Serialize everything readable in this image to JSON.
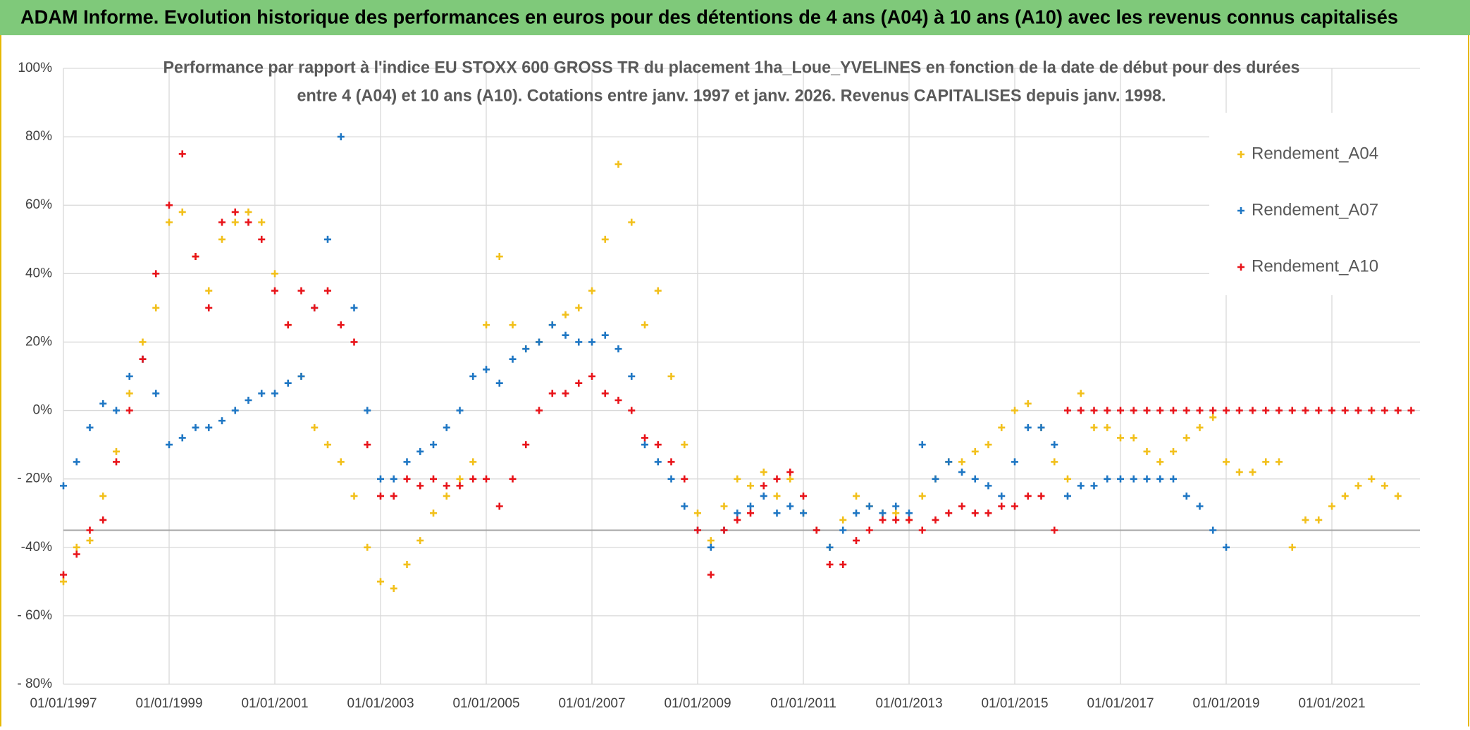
{
  "header": "ADAM Informe. Evolution historique des performances en euros pour des détentions de 4 ans (A04) à 10 ans (A10) avec les revenus connus capitalisés",
  "chart_data": {
    "type": "scatter",
    "title": [
      "Performance par rapport à l'indice EU STOXX 600 GROSS TR  du placement 1ha_Loue_YVELINES en fonction de la date de début pour des durées",
      "entre 4 (A04) et 10 ans (A10). Cotations entre janv. 1997 et janv. 2026. Revenus CAPITALISES depuis janv. 1998."
    ],
    "x": [
      "01/01/1997",
      "01/04/1997",
      "01/07/1997",
      "01/10/1997",
      "01/01/1998",
      "01/04/1998",
      "01/07/1998",
      "01/10/1998",
      "01/01/1999",
      "01/04/1999",
      "01/07/1999",
      "01/10/1999",
      "01/01/2000",
      "01/04/2000",
      "01/07/2000",
      "01/10/2000",
      "01/01/2001",
      "01/04/2001",
      "01/07/2001",
      "01/10/2001",
      "01/01/2002",
      "01/04/2002",
      "01/07/2002",
      "01/10/2002",
      "01/01/2003",
      "01/04/2003",
      "01/07/2003",
      "01/10/2003",
      "01/01/2004",
      "01/04/2004",
      "01/07/2004",
      "01/10/2004",
      "01/01/2005",
      "01/04/2005",
      "01/07/2005",
      "01/10/2005",
      "01/01/2006",
      "01/04/2006",
      "01/07/2006",
      "01/10/2006",
      "01/01/2007",
      "01/04/2007",
      "01/07/2007",
      "01/10/2007",
      "01/01/2008",
      "01/04/2008",
      "01/07/2008",
      "01/10/2008",
      "01/01/2009",
      "01/04/2009",
      "01/07/2009",
      "01/10/2009",
      "01/01/2010",
      "01/04/2010",
      "01/07/2010",
      "01/10/2010",
      "01/01/2011",
      "01/04/2011",
      "01/07/2011",
      "01/10/2011",
      "01/01/2012",
      "01/04/2012",
      "01/07/2012",
      "01/10/2012",
      "01/01/2013",
      "01/04/2013",
      "01/07/2013",
      "01/10/2013",
      "01/01/2014",
      "01/04/2014",
      "01/07/2014",
      "01/10/2014",
      "01/01/2015",
      "01/04/2015",
      "01/07/2015",
      "01/10/2015",
      "01/01/2016",
      "01/04/2016",
      "01/07/2016",
      "01/10/2016",
      "01/01/2017",
      "01/04/2017",
      "01/07/2017",
      "01/10/2017",
      "01/01/2018",
      "01/04/2018",
      "01/07/2018",
      "01/10/2018",
      "01/01/2019",
      "01/04/2019",
      "01/07/2019",
      "01/10/2019",
      "01/01/2020",
      "01/04/2020",
      "01/07/2020",
      "01/10/2020",
      "01/01/2021",
      "01/04/2021",
      "01/07/2021",
      "01/10/2021",
      "01/01/2022",
      "01/04/2022",
      "01/07/2022"
    ],
    "series": [
      {
        "name": "Rendement_A04",
        "color": "#f2c01b",
        "values": [
          -50,
          -40,
          -38,
          -25,
          -12,
          5,
          20,
          30,
          55,
          58,
          45,
          35,
          50,
          55,
          58,
          55,
          40,
          25,
          10,
          -5,
          -10,
          -15,
          -25,
          -40,
          -50,
          -52,
          -45,
          -38,
          -30,
          -25,
          -20,
          -15,
          25,
          45,
          25,
          18,
          20,
          25,
          28,
          30,
          35,
          50,
          72,
          55,
          25,
          35,
          10,
          -10,
          -30,
          -38,
          -28,
          -20,
          -22,
          -18,
          -25,
          -20,
          -30,
          -35,
          -40,
          -32,
          -25,
          -28,
          -30,
          -30,
          -32,
          -25,
          -20,
          -15,
          -15,
          -12,
          -10,
          -5,
          0,
          2,
          -5,
          -15,
          -20,
          5,
          -5,
          -5,
          -8,
          -8,
          -12,
          -15,
          -12,
          -8,
          -5,
          -2,
          -15,
          -18,
          -18,
          -15,
          -15,
          -40,
          -32,
          -32,
          -28,
          -25,
          -22,
          -20,
          -22,
          -25,
          null
        ]
      },
      {
        "name": "Rendement_A07",
        "color": "#1f77c4",
        "values": [
          -22,
          -15,
          -5,
          2,
          0,
          10,
          15,
          5,
          -10,
          -8,
          -5,
          -5,
          -3,
          0,
          3,
          5,
          5,
          8,
          10,
          30,
          50,
          80,
          30,
          0,
          -20,
          -20,
          -15,
          -12,
          -10,
          -5,
          0,
          10,
          12,
          8,
          15,
          18,
          20,
          25,
          22,
          20,
          20,
          22,
          18,
          10,
          -10,
          -15,
          -20,
          -28,
          -35,
          -40,
          -35,
          -30,
          -28,
          -25,
          -30,
          -28,
          -30,
          -35,
          -40,
          -35,
          -30,
          -28,
          -30,
          -28,
          -30,
          -10,
          -20,
          -15,
          -18,
          -20,
          -22,
          -25,
          -15,
          -5,
          -5,
          -10,
          -25,
          -22,
          -22,
          -20,
          -20,
          -20,
          -20,
          -20,
          -20,
          -25,
          -28,
          -35,
          -40,
          null,
          null,
          null,
          null,
          null,
          null,
          null,
          null,
          null,
          null,
          null,
          null,
          null,
          null
        ]
      },
      {
        "name": "Rendement_A10",
        "color": "#e8141a",
        "values": [
          -48,
          -42,
          -35,
          -32,
          -15,
          0,
          15,
          40,
          60,
          75,
          45,
          30,
          55,
          58,
          55,
          50,
          35,
          25,
          35,
          30,
          35,
          25,
          20,
          -10,
          -25,
          -25,
          -20,
          -22,
          -20,
          -22,
          -22,
          -20,
          -20,
          -28,
          -20,
          -10,
          0,
          5,
          5,
          8,
          10,
          5,
          3,
          0,
          -8,
          -10,
          -15,
          -20,
          -35,
          -48,
          -35,
          -32,
          -30,
          -22,
          -20,
          -18,
          -25,
          -35,
          -45,
          -45,
          -38,
          -35,
          -32,
          -32,
          -32,
          -35,
          -32,
          -30,
          -28,
          -30,
          -30,
          -28,
          -28,
          -25,
          -25,
          -35,
          0,
          0,
          0,
          0,
          0,
          0,
          0,
          0,
          0,
          0,
          0,
          0,
          0,
          0,
          0,
          0,
          0,
          0,
          0,
          0,
          0,
          0,
          0,
          0,
          0,
          0,
          0
        ]
      }
    ],
    "xlim": [
      "01/01/1997",
      "01/09/2022"
    ],
    "xticks": [
      "01/01/1997",
      "01/01/1999",
      "01/01/2001",
      "01/01/2003",
      "01/01/2005",
      "01/01/2007",
      "01/01/2009",
      "01/01/2011",
      "01/01/2013",
      "01/01/2015",
      "01/01/2017",
      "01/01/2019",
      "01/01/2021"
    ],
    "ylim": [
      -80,
      100
    ],
    "yticks": [
      {
        "value": -80,
        "label": "- 80%"
      },
      {
        "value": -60,
        "label": "- 60%"
      },
      {
        "value": -40,
        "label": "-40%"
      },
      {
        "value": -20,
        "label": "- 20%"
      },
      {
        "value": 0,
        "label": "0%"
      },
      {
        "value": 20,
        "label": "20%"
      },
      {
        "value": 40,
        "label": "40%"
      },
      {
        "value": 60,
        "label": "60%"
      },
      {
        "value": 80,
        "label": "80%"
      },
      {
        "value": 100,
        "label": "100%"
      }
    ],
    "reference_line": -35,
    "grid": true,
    "legend": "top-right"
  }
}
